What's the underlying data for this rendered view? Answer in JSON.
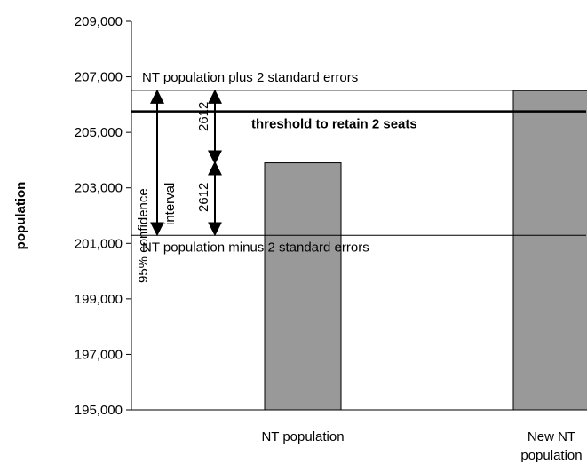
{
  "chart_data": {
    "type": "bar",
    "categories": [
      "NT population",
      "New NT population"
    ],
    "category_label_lines": [
      [
        "NT population"
      ],
      [
        "New NT",
        "population"
      ]
    ],
    "values": [
      203900,
      206500
    ],
    "ylabel": "population",
    "ylim": [
      195000,
      209000
    ],
    "yticks": [
      195000,
      197000,
      199000,
      201000,
      203000,
      205000,
      207000,
      209000
    ],
    "ytick_labels": [
      "195,000",
      "197,000",
      "199,000",
      "201,000",
      "203,000",
      "205,000",
      "207,000",
      "209,000"
    ],
    "bar_color": "#999999",
    "reference_lines": [
      {
        "label": "NT population plus 2 standard errors",
        "value": 206512,
        "style": "thin"
      },
      {
        "label": "threshold to retain 2 seats",
        "value": 205750,
        "style": "thick"
      },
      {
        "label": "NT population minus 2 standard errors",
        "value": 201288,
        "style": "thin"
      }
    ],
    "annotations": {
      "confidence_interval_lines": [
        "95% confidence",
        "interval"
      ],
      "half_interval_upper": "2612",
      "half_interval_lower": "2612"
    },
    "grid": false,
    "legend": "none"
  }
}
